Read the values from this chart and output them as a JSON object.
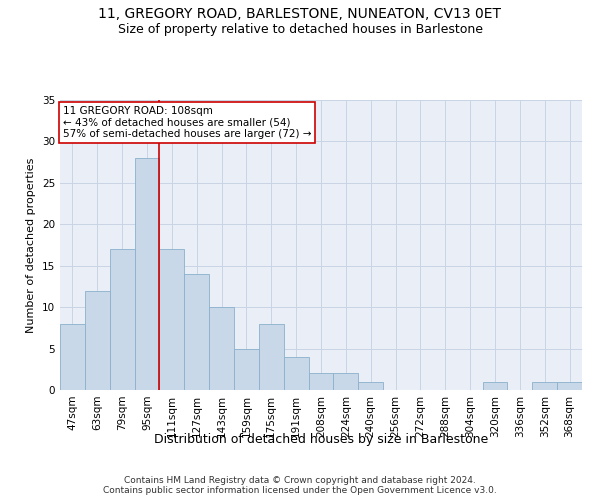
{
  "title": "11, GREGORY ROAD, BARLESTONE, NUNEATON, CV13 0ET",
  "subtitle": "Size of property relative to detached houses in Barlestone",
  "xlabel": "Distribution of detached houses by size in Barlestone",
  "ylabel": "Number of detached properties",
  "categories": [
    "47sqm",
    "63sqm",
    "79sqm",
    "95sqm",
    "111sqm",
    "127sqm",
    "143sqm",
    "159sqm",
    "175sqm",
    "191sqm",
    "208sqm",
    "224sqm",
    "240sqm",
    "256sqm",
    "272sqm",
    "288sqm",
    "304sqm",
    "320sqm",
    "336sqm",
    "352sqm",
    "368sqm"
  ],
  "values": [
    8,
    12,
    17,
    28,
    17,
    14,
    10,
    5,
    8,
    4,
    2,
    2,
    1,
    0,
    0,
    0,
    0,
    1,
    0,
    1,
    1
  ],
  "bar_color": "#c8d8e8",
  "bar_edge_color": "#8ab0cc",
  "bar_edge_width": 0.6,
  "property_line_index": 4,
  "annotation_line1": "11 GREGORY ROAD: 108sqm",
  "annotation_line2": "← 43% of detached houses are smaller (54)",
  "annotation_line3": "57% of semi-detached houses are larger (72) →",
  "annotation_box_color": "#ffffff",
  "annotation_box_edge_color": "#cc0000",
  "property_line_color": "#cc0000",
  "ylim": [
    0,
    35
  ],
  "yticks": [
    0,
    5,
    10,
    15,
    20,
    25,
    30,
    35
  ],
  "grid_color": "#c8d4e4",
  "background_color": "#eaeff7",
  "title_fontsize": 10,
  "subtitle_fontsize": 9,
  "ylabel_fontsize": 8,
  "xlabel_fontsize": 9,
  "tick_fontsize": 7.5,
  "annotation_fontsize": 7.5,
  "footer_line1": "Contains HM Land Registry data © Crown copyright and database right 2024.",
  "footer_line2": "Contains public sector information licensed under the Open Government Licence v3.0."
}
